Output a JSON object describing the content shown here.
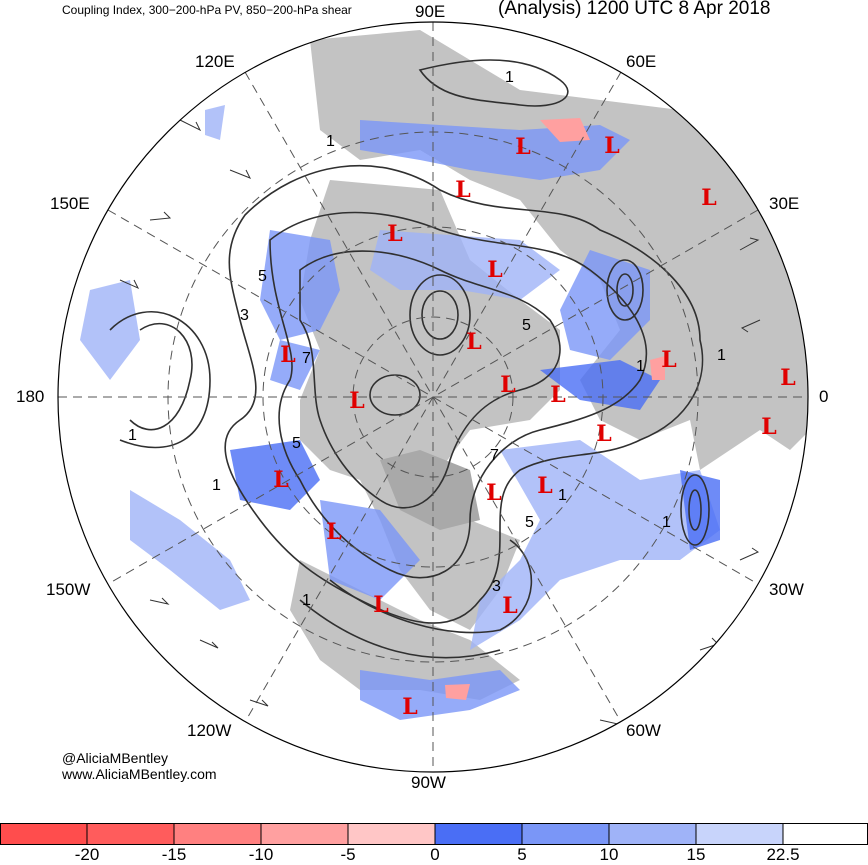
{
  "header": {
    "left_title": "Coupling Index, 300−200-hPa PV, 850−200-hPa shear",
    "right_title": "(Analysis) 1200 UTC 8 Apr 2018"
  },
  "longitude_labels": {
    "top": "90E",
    "upper_left": "120E",
    "upper_right": "60E",
    "left_upper": "150E",
    "right_upper": "30E",
    "left": "180",
    "right": "0",
    "left_lower": "150W",
    "right_lower": "30W",
    "lower_left": "120W",
    "lower_right": "60W",
    "bottom": "90W"
  },
  "credits": {
    "twitter": "@AliciaMBentley",
    "website": "www.AliciaMBentley.com"
  },
  "contour_labels": {
    "one": "1",
    "three": "3",
    "five": "5",
    "seven": "7"
  },
  "low_marker": "L",
  "colorbar": {
    "ticks": [
      "-20",
      "-15",
      "-10",
      "-5",
      "0",
      "5",
      "10",
      "15",
      "22.5"
    ],
    "colors": [
      "#ff4d4d",
      "#ff5c5c",
      "#ff8080",
      "#ffa0a0",
      "#ffc6c6",
      "#4a6ef5",
      "#7a96f7",
      "#9fb3f8",
      "#c8d4fb",
      "#ffffff"
    ]
  },
  "colors": {
    "land": "#c3c3c3",
    "ocean": "#ffffff",
    "low_marker": "#e00000",
    "contour": "#303030"
  }
}
